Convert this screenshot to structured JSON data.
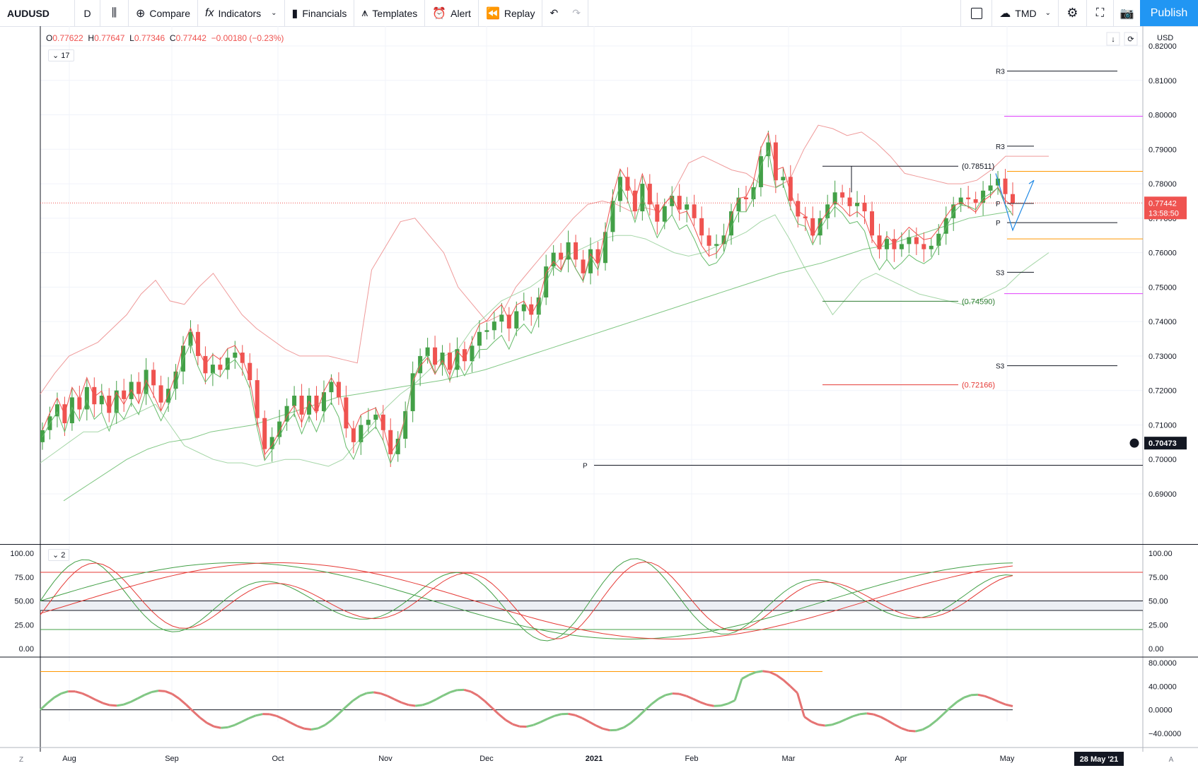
{
  "toolbar": {
    "symbol": "AUDUSD",
    "interval": "D",
    "compare": "Compare",
    "indicators": "Indicators",
    "financials": "Financials",
    "templates": "Templates",
    "alert": "Alert",
    "replay": "Replay",
    "currency": "TMD",
    "publish": "Publish"
  },
  "legend": {
    "o_lab": "O",
    "o_val": "0.77622",
    "h_lab": "H",
    "h_val": "0.77647",
    "l_lab": "L",
    "l_val": "0.77346",
    "c_lab": "C",
    "c_val": "0.77442",
    "chg": "−0.00180 (−0.23%)",
    "main_count": "17",
    "stoch_count": "2"
  },
  "colors": {
    "up": "#43a047",
    "down": "#ef5350",
    "accent": "#2196f3"
  },
  "chart_data": [
    {
      "type": "candlestick",
      "ylabel": "USD",
      "ylim": [
        0.685,
        0.825
      ],
      "yticks": [
        "0.82000",
        "0.81000",
        "0.80000",
        "0.79000",
        "0.78000",
        "0.77000",
        "0.76000",
        "0.75000",
        "0.74000",
        "0.73000",
        "0.72000",
        "0.71000",
        "0.70000",
        "0.69000"
      ],
      "xticks": [
        "Aug",
        "Sep",
        "Oct",
        "Nov",
        "Dec",
        "2021",
        "Feb",
        "Mar",
        "Apr",
        "May"
      ],
      "last_price": "0.77442",
      "countdown": "13:58:50",
      "crosshair_price": "0.70473",
      "crosshair_date": "28 May '21",
      "closes": [
        0.7085,
        0.7125,
        0.716,
        0.7105,
        0.718,
        0.7145,
        0.721,
        0.716,
        0.7185,
        0.7135,
        0.72,
        0.7175,
        0.7225,
        0.719,
        0.726,
        0.7215,
        0.7165,
        0.7205,
        0.7255,
        0.733,
        0.737,
        0.73,
        0.725,
        0.7275,
        0.726,
        0.7295,
        0.731,
        0.728,
        0.723,
        0.712,
        0.703,
        0.7065,
        0.711,
        0.7155,
        0.7185,
        0.713,
        0.7185,
        0.714,
        0.7195,
        0.7225,
        0.718,
        0.709,
        0.705,
        0.71,
        0.7115,
        0.713,
        0.7085,
        0.7015,
        0.706,
        0.714,
        0.725,
        0.73,
        0.7325,
        0.7275,
        0.731,
        0.726,
        0.732,
        0.7285,
        0.733,
        0.737,
        0.7375,
        0.74,
        0.742,
        0.738,
        0.743,
        0.745,
        0.742,
        0.747,
        0.756,
        0.76,
        0.758,
        0.763,
        0.758,
        0.754,
        0.761,
        0.757,
        0.766,
        0.775,
        0.782,
        0.778,
        0.772,
        0.78,
        0.774,
        0.769,
        0.7735,
        0.7765,
        0.7725,
        0.774,
        0.77,
        0.765,
        0.762,
        0.7625,
        0.765,
        0.772,
        0.776,
        0.7755,
        0.779,
        0.788,
        0.792,
        0.781,
        0.782,
        0.775,
        0.7705,
        0.77,
        0.765,
        0.77,
        0.774,
        0.7775,
        0.776,
        0.7735,
        0.7745,
        0.772,
        0.765,
        0.761,
        0.764,
        0.761,
        0.7625,
        0.7645,
        0.7625,
        0.761,
        0.762,
        0.7655,
        0.77,
        0.774,
        0.776,
        0.7755,
        0.7745,
        0.778,
        0.7795,
        0.7815,
        0.777,
        0.7744
      ],
      "upper_band": [
        0.719,
        0.725,
        0.73,
        0.732,
        0.734,
        0.738,
        0.742,
        0.748,
        0.752,
        0.746,
        0.745,
        0.75,
        0.754,
        0.748,
        0.742,
        0.738,
        0.735,
        0.732,
        0.73,
        0.73,
        0.73,
        0.729,
        0.728,
        0.755,
        0.762,
        0.769,
        0.77,
        0.765,
        0.76,
        0.75,
        0.745,
        0.74,
        0.742,
        0.75,
        0.755,
        0.76,
        0.765,
        0.77,
        0.774,
        0.775,
        0.774,
        0.772,
        0.773,
        0.772,
        0.778,
        0.786,
        0.788,
        0.786,
        0.784,
        0.783,
        0.78,
        0.779,
        0.781,
        0.79,
        0.797,
        0.796,
        0.794,
        0.795,
        0.792,
        0.788,
        0.783,
        0.782,
        0.781,
        0.78,
        0.78,
        0.781,
        0.784,
        0.788,
        0.788,
        0.788,
        0.788
      ],
      "lower_band": [
        0.699,
        0.702,
        0.705,
        0.708,
        0.708,
        0.71,
        0.712,
        0.714,
        0.716,
        0.71,
        0.704,
        0.702,
        0.7,
        0.699,
        0.699,
        0.698,
        0.699,
        0.7,
        0.7,
        0.699,
        0.698,
        0.7,
        0.705,
        0.71,
        0.715,
        0.719,
        0.722,
        0.726,
        0.73,
        0.732,
        0.738,
        0.742,
        0.746,
        0.748,
        0.75,
        0.753,
        0.758,
        0.76,
        0.762,
        0.764,
        0.765,
        0.765,
        0.764,
        0.762,
        0.76,
        0.759,
        0.76,
        0.762,
        0.764,
        0.766,
        0.769,
        0.771,
        0.764,
        0.756,
        0.749,
        0.742,
        0.747,
        0.752,
        0.754,
        0.752,
        0.75,
        0.748,
        0.747,
        0.746,
        0.745,
        0.746,
        0.748,
        0.75,
        0.754,
        0.757,
        0.76
      ],
      "ma": [
        0.688,
        0.692,
        0.696,
        0.7,
        0.703,
        0.705,
        0.706,
        0.708,
        0.709,
        0.71,
        0.712,
        0.714,
        0.716,
        0.718,
        0.719,
        0.72,
        0.721,
        0.722,
        0.723,
        0.7245,
        0.726,
        0.728,
        0.73,
        0.732,
        0.734,
        0.736,
        0.738,
        0.74,
        0.742,
        0.744,
        0.746,
        0.748,
        0.75,
        0.752,
        0.754,
        0.7555,
        0.757,
        0.759,
        0.761,
        0.762,
        0.764,
        0.766,
        0.768,
        0.77,
        0.771,
        0.772
      ],
      "levels": [
        {
          "label": "R3",
          "price": 0.8127
        },
        {
          "label": "R3",
          "price": 0.7909
        },
        {
          "label": "",
          "price": 0.7996
        },
        {
          "label": "",
          "price": 0.7836
        },
        {
          "label": "P",
          "price": 0.7743
        },
        {
          "label": "P",
          "price": 0.7687
        },
        {
          "label": "",
          "price": 0.764
        },
        {
          "label": "S3",
          "price": 0.7543
        },
        {
          "label": "",
          "price": 0.7481
        },
        {
          "label": "S3",
          "price": 0.7272
        },
        {
          "label": "P",
          "price": 0.6983
        }
      ],
      "fib_high": "(0.78511)",
      "fib_mid": "(0.74590)",
      "fib_low": "(0.72166)"
    },
    {
      "type": "line",
      "name": "stochastic",
      "yticks_left": [
        "100.00",
        "75.00",
        "50.00",
        "25.00",
        "0.00"
      ],
      "yticks_right": [
        "100.00",
        "75.00",
        "50.00",
        "25.00",
        "0.00"
      ],
      "ylim": [
        0,
        100
      ]
    },
    {
      "type": "line",
      "name": "momentum",
      "yticks": [
        "80.0000",
        "40.0000",
        "0.0000",
        "−40.0000"
      ],
      "ylim": [
        -55,
        85
      ]
    }
  ]
}
